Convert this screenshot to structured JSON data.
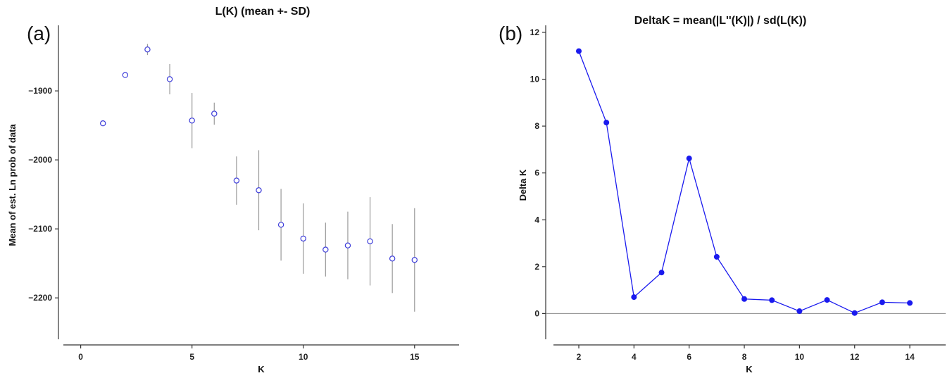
{
  "chart_data": [
    {
      "panel_label": "(a)",
      "type": "scatter",
      "title": "L(K) (mean +- SD)",
      "xlabel": "K",
      "ylabel": "Mean of est. Ln prob of data",
      "xlim": [
        -1,
        17
      ],
      "ylim": [
        -2260,
        -1805
      ],
      "xticks": [
        0,
        5,
        10,
        15
      ],
      "yticks": [
        -1900,
        -2000,
        -2100,
        -2200
      ],
      "x": [
        1,
        2,
        3,
        4,
        5,
        6,
        7,
        8,
        9,
        10,
        11,
        12,
        13,
        14,
        15
      ],
      "mean": [
        -1947,
        -1877,
        -1840,
        -1883,
        -1943,
        -1933,
        -2030,
        -2044,
        -2094,
        -2114,
        -2130,
        -2124,
        -2118,
        -2143,
        -2145
      ],
      "sd": [
        0,
        0,
        8,
        22,
        40,
        16,
        35,
        58,
        52,
        51,
        39,
        49,
        64,
        50,
        75
      ],
      "marker_color": "#3b3bd9",
      "errorbar_color": "#9a9a9a"
    },
    {
      "panel_label": "(b)",
      "type": "line",
      "title": "DeltaK = mean(|L''(K)|) / sd(L(K))",
      "xlabel": "K",
      "ylabel": "Delta K",
      "xlim": [
        0.8,
        15.3
      ],
      "ylim": [
        -1.1,
        12.3
      ],
      "xticks": [
        2,
        4,
        6,
        8,
        10,
        12,
        14
      ],
      "yticks": [
        0,
        2,
        4,
        6,
        8,
        10,
        12
      ],
      "x": [
        2,
        3,
        4,
        5,
        6,
        7,
        8,
        9,
        10,
        11,
        12,
        13,
        14
      ],
      "values": [
        11.2,
        8.15,
        0.7,
        1.75,
        6.62,
        2.42,
        0.62,
        0.57,
        0.1,
        0.58,
        0.02,
        0.48,
        0.45
      ],
      "zero_line": true,
      "color": "#1a1aee"
    }
  ]
}
